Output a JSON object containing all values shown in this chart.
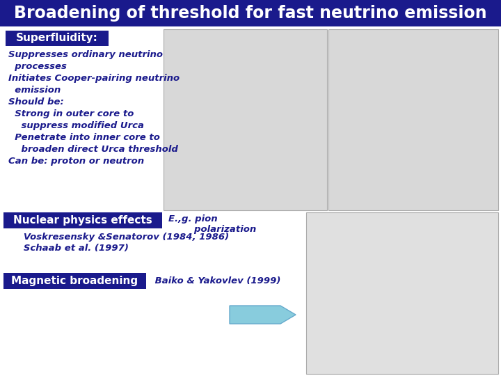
{
  "title": "Broadening of threshold for fast neutrino emission",
  "title_bg": "#1a1a8c",
  "title_color": "#ffffff",
  "title_fontsize": 17,
  "bg_color": "#ffffff",
  "label_bg": "#1a1a8c",
  "label_color": "#ffffff",
  "text_color": "#1a1a8c",
  "label1": "Superfluidity:",
  "label1_fontsize": 11,
  "body1_lines": [
    "Suppresses ordinary neutrino",
    "  processes",
    "Initiates Cooper-pairing neutrino",
    "  emission",
    "Should be:",
    "  Strong in outer core to",
    "    suppress modified Urca",
    "  Penetrate into inner core to",
    "    broaden direct Urca threshold",
    "Can be: proton or neutron"
  ],
  "body1_fontsize": 9.5,
  "label2": "Nuclear physics effects",
  "label2_fontsize": 11,
  "body2_line1": "E.,g. pion",
  "body2_line2": "        polarization",
  "body2_line3": "   Voskresensky &Senatorov (1984, 1986)",
  "body2_line4": "   Schaab et al. (1997)",
  "body2_fontsize": 9.5,
  "label3": "Magnetic broadening",
  "label3_fontsize": 11,
  "body3": " Baiko & Yakovlev (1999)",
  "body3_fontsize": 9.5,
  "arrow_color": "#88ccdd",
  "arrow_edge": "#66aacc"
}
